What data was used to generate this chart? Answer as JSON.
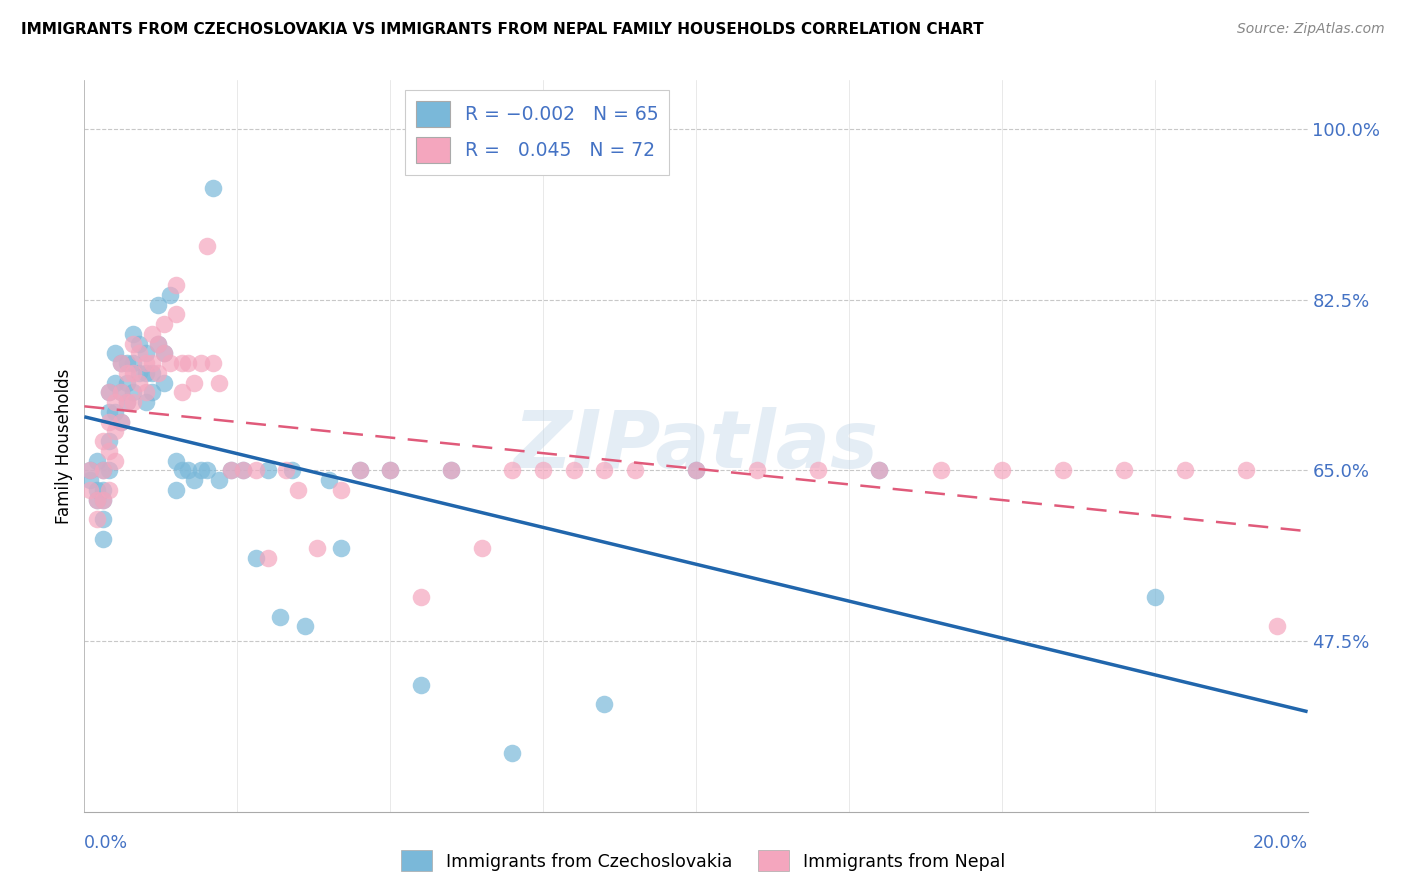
{
  "title": "IMMIGRANTS FROM CZECHOSLOVAKIA VS IMMIGRANTS FROM NEPAL FAMILY HOUSEHOLDS CORRELATION CHART",
  "source": "Source: ZipAtlas.com",
  "ylabel": "Family Households",
  "y_tick_labels": [
    "47.5%",
    "65.0%",
    "82.5%",
    "100.0%"
  ],
  "y_tick_values": [
    0.475,
    0.65,
    0.825,
    1.0
  ],
  "x_min": 0.0,
  "x_max": 0.2,
  "y_min": 0.3,
  "y_max": 1.05,
  "blue_color": "#7ab8d9",
  "pink_color": "#f4a6be",
  "blue_line_color": "#2166ac",
  "pink_line_color": "#e05a7a",
  "legend_label_blue": "Immigrants from Czechoslovakia",
  "legend_label_pink": "Immigrants from Nepal",
  "watermark": "ZIPatlas",
  "blue_scatter_x": [
    0.001,
    0.001,
    0.002,
    0.002,
    0.002,
    0.003,
    0.003,
    0.003,
    0.003,
    0.003,
    0.004,
    0.004,
    0.004,
    0.004,
    0.005,
    0.005,
    0.005,
    0.006,
    0.006,
    0.006,
    0.007,
    0.007,
    0.007,
    0.008,
    0.008,
    0.008,
    0.009,
    0.009,
    0.01,
    0.01,
    0.01,
    0.011,
    0.011,
    0.012,
    0.012,
    0.013,
    0.013,
    0.014,
    0.015,
    0.015,
    0.016,
    0.017,
    0.018,
    0.019,
    0.02,
    0.021,
    0.022,
    0.024,
    0.026,
    0.028,
    0.03,
    0.032,
    0.034,
    0.036,
    0.04,
    0.042,
    0.045,
    0.05,
    0.055,
    0.06,
    0.07,
    0.085,
    0.1,
    0.13,
    0.175
  ],
  "blue_scatter_y": [
    0.65,
    0.64,
    0.66,
    0.63,
    0.62,
    0.65,
    0.63,
    0.62,
    0.6,
    0.58,
    0.73,
    0.71,
    0.68,
    0.65,
    0.77,
    0.74,
    0.71,
    0.76,
    0.73,
    0.7,
    0.76,
    0.74,
    0.72,
    0.79,
    0.76,
    0.73,
    0.78,
    0.75,
    0.77,
    0.75,
    0.72,
    0.75,
    0.73,
    0.82,
    0.78,
    0.77,
    0.74,
    0.83,
    0.66,
    0.63,
    0.65,
    0.65,
    0.64,
    0.65,
    0.65,
    0.94,
    0.64,
    0.65,
    0.65,
    0.56,
    0.65,
    0.5,
    0.65,
    0.49,
    0.64,
    0.57,
    0.65,
    0.65,
    0.43,
    0.65,
    0.36,
    0.41,
    0.65,
    0.65,
    0.52
  ],
  "pink_scatter_x": [
    0.001,
    0.001,
    0.002,
    0.002,
    0.003,
    0.003,
    0.003,
    0.004,
    0.004,
    0.004,
    0.004,
    0.005,
    0.005,
    0.005,
    0.006,
    0.006,
    0.006,
    0.007,
    0.007,
    0.008,
    0.008,
    0.008,
    0.009,
    0.009,
    0.01,
    0.01,
    0.011,
    0.011,
    0.012,
    0.012,
    0.013,
    0.013,
    0.014,
    0.015,
    0.015,
    0.016,
    0.016,
    0.017,
    0.018,
    0.019,
    0.02,
    0.021,
    0.022,
    0.024,
    0.026,
    0.028,
    0.03,
    0.033,
    0.035,
    0.038,
    0.042,
    0.045,
    0.05,
    0.055,
    0.06,
    0.065,
    0.07,
    0.075,
    0.08,
    0.085,
    0.09,
    0.1,
    0.11,
    0.12,
    0.13,
    0.14,
    0.15,
    0.16,
    0.17,
    0.18,
    0.19,
    0.195
  ],
  "pink_scatter_y": [
    0.65,
    0.63,
    0.62,
    0.6,
    0.68,
    0.65,
    0.62,
    0.73,
    0.7,
    0.67,
    0.63,
    0.72,
    0.69,
    0.66,
    0.76,
    0.73,
    0.7,
    0.75,
    0.72,
    0.78,
    0.75,
    0.72,
    0.77,
    0.74,
    0.76,
    0.73,
    0.79,
    0.76,
    0.78,
    0.75,
    0.8,
    0.77,
    0.76,
    0.84,
    0.81,
    0.76,
    0.73,
    0.76,
    0.74,
    0.76,
    0.88,
    0.76,
    0.74,
    0.65,
    0.65,
    0.65,
    0.56,
    0.65,
    0.63,
    0.57,
    0.63,
    0.65,
    0.65,
    0.52,
    0.65,
    0.57,
    0.65,
    0.65,
    0.65,
    0.65,
    0.65,
    0.65,
    0.65,
    0.65,
    0.65,
    0.65,
    0.65,
    0.65,
    0.65,
    0.65,
    0.65,
    0.49
  ]
}
